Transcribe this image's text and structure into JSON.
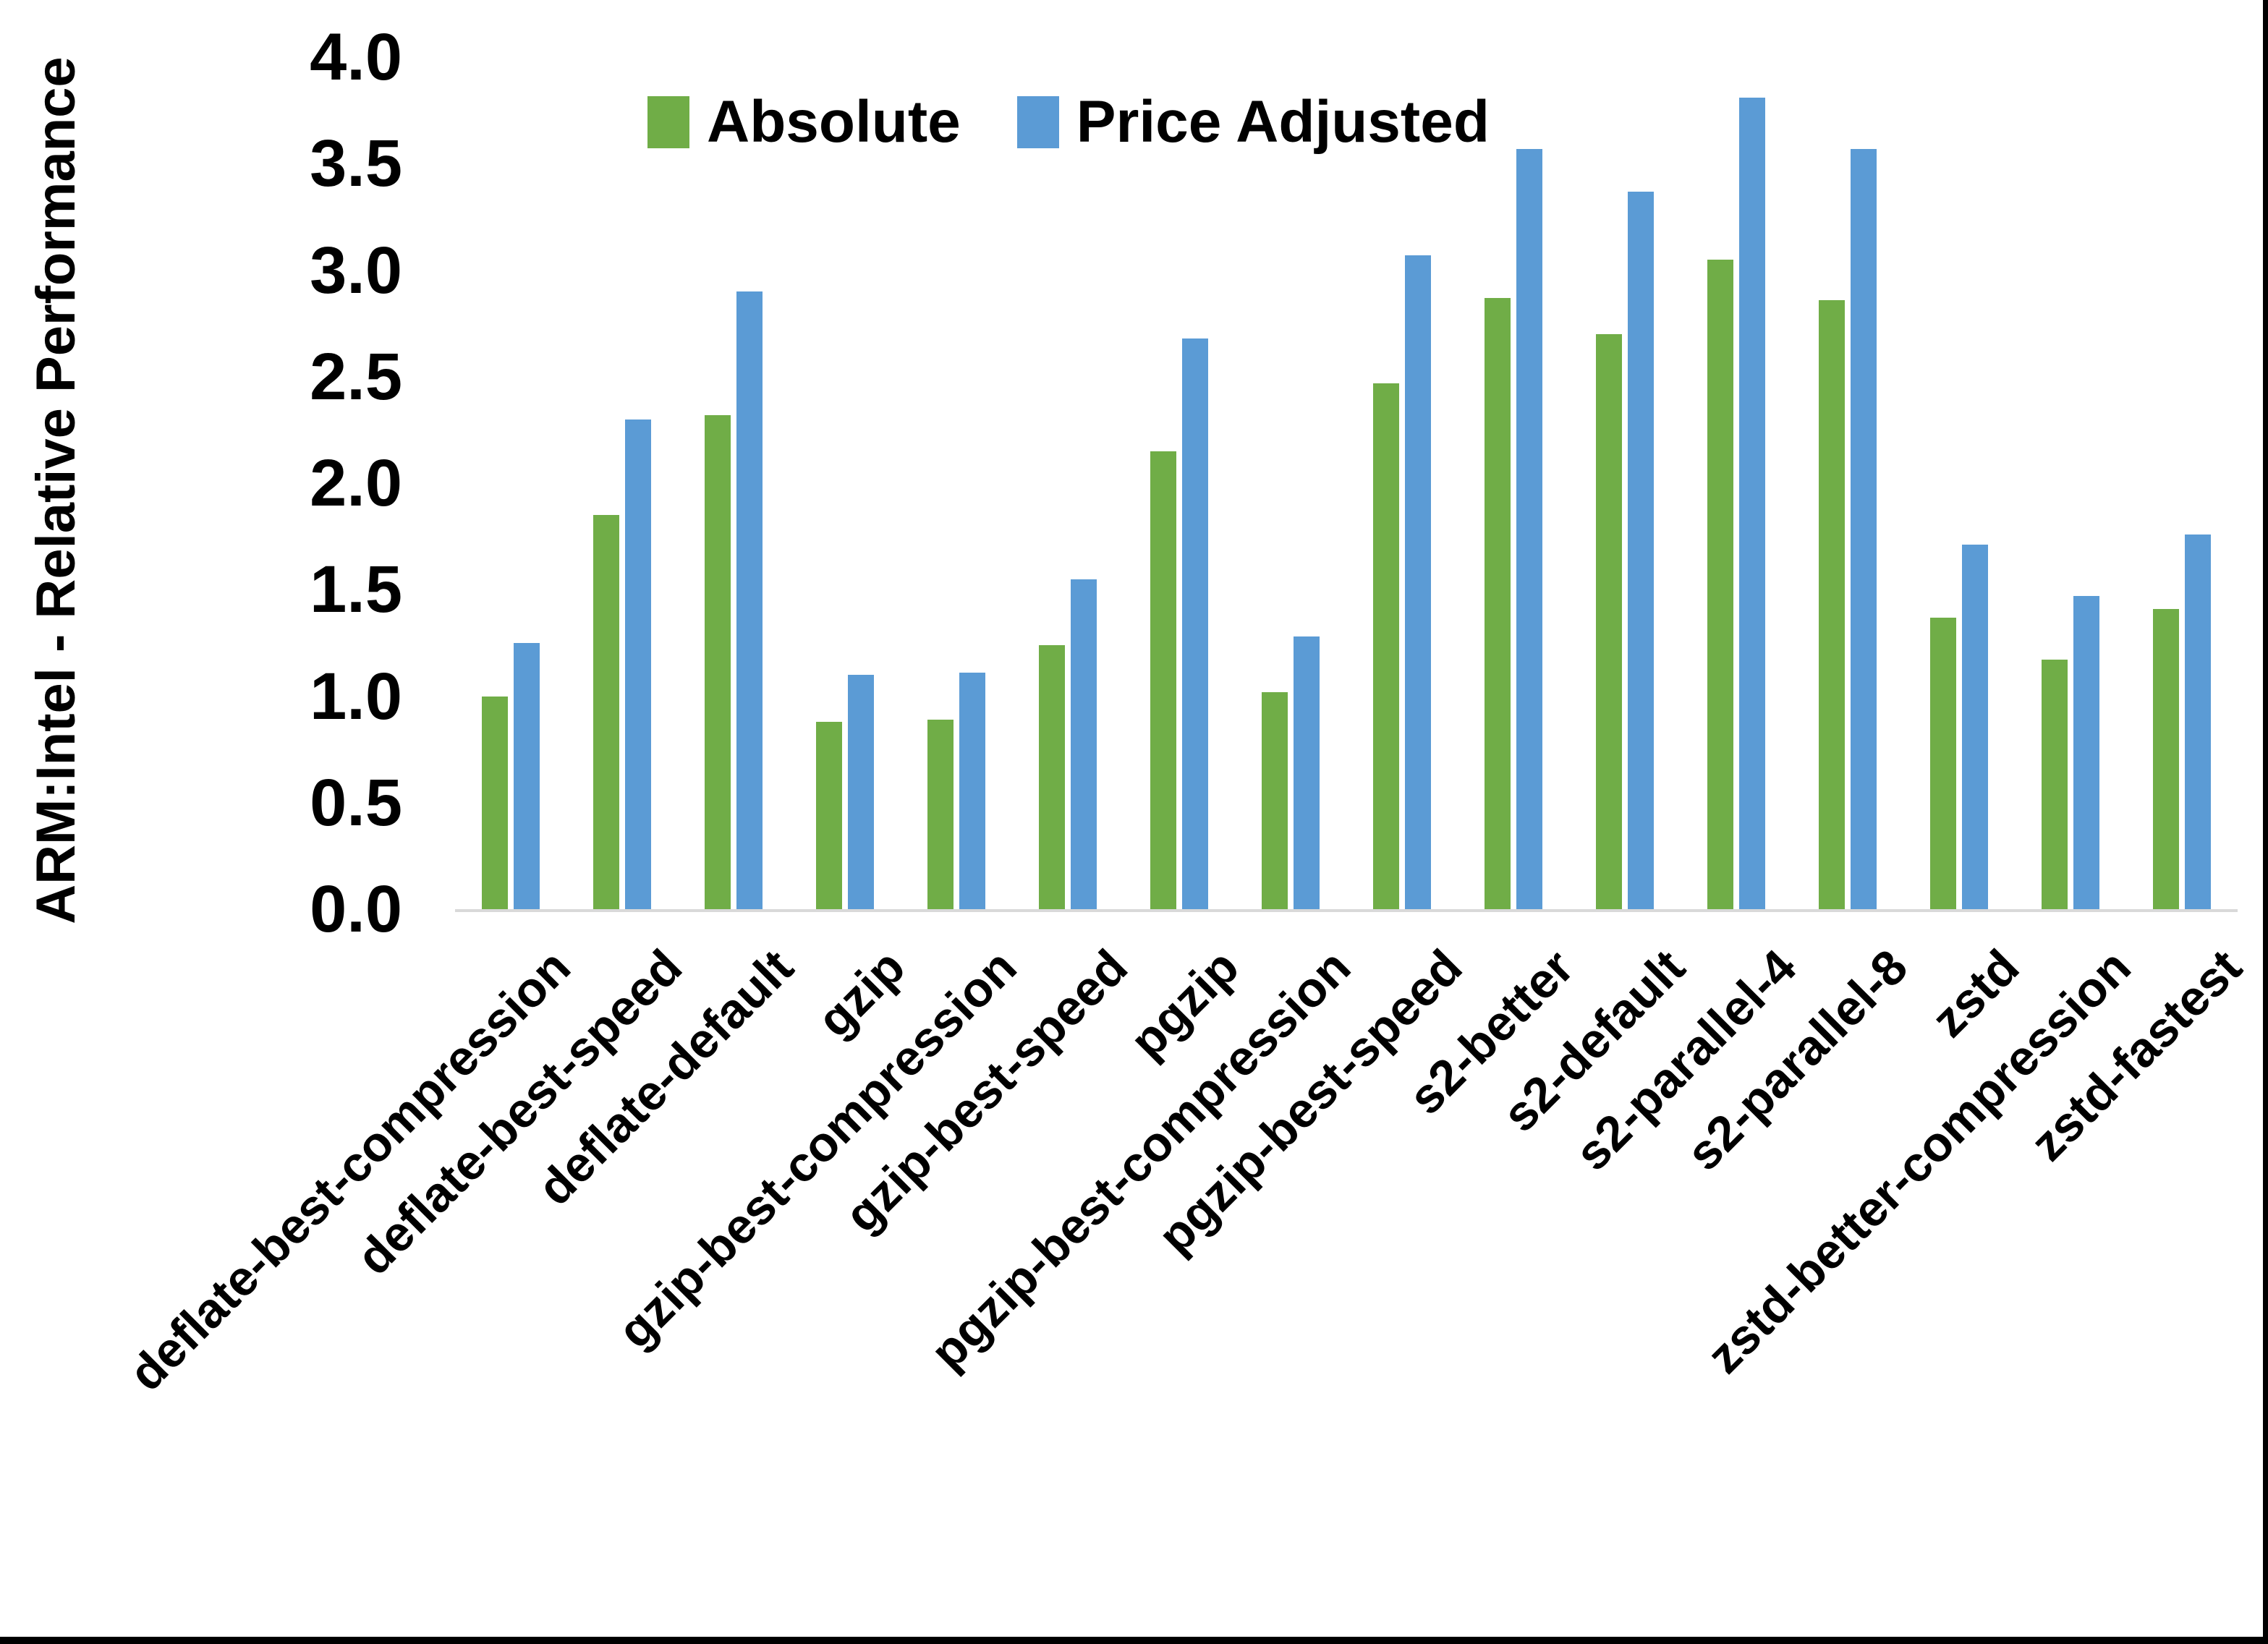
{
  "chart_data": {
    "type": "bar",
    "title": "",
    "ylabel": "ARM:Intel - Relative Performance",
    "xlabel": "",
    "ylim": [
      0.0,
      4.0
    ],
    "ytick_interval": 0.5,
    "ytick_labels": [
      "4.0",
      "3.5",
      "3.0",
      "2.5",
      "2.0",
      "1.5",
      "1.0",
      "0.5",
      "0.0"
    ],
    "grid": false,
    "legend_position": "top-center",
    "axis_line_color": "#d9d9d9",
    "text_color": "#000000",
    "categories": [
      "deflate-best-compression",
      "deflate-best-speed",
      "deflate-default",
      "gzip",
      "gzip-best-compression",
      "gzip-best-speed",
      "pgzip",
      "pgzip-best-compression",
      "pgzip-best-speed",
      "s2-better",
      "s2-default",
      "s2-parallel-4",
      "s2-parallel-8",
      "zstd",
      "zstd-better-compression",
      "zstd-fastest"
    ],
    "series": [
      {
        "name": "Absolute",
        "color": "#70AD47",
        "values": [
          1.0,
          1.85,
          2.32,
          0.88,
          0.89,
          1.24,
          2.15,
          1.02,
          2.47,
          2.87,
          2.7,
          3.05,
          2.86,
          1.37,
          1.17,
          1.41
        ]
      },
      {
        "name": "Price Adjusted",
        "color": "#5B9BD5",
        "values": [
          1.25,
          2.3,
          2.9,
          1.1,
          1.11,
          1.55,
          2.68,
          1.28,
          3.07,
          3.57,
          3.37,
          3.81,
          3.57,
          1.71,
          1.47,
          1.76
        ]
      }
    ]
  },
  "frame": {
    "edge_color": "#000000"
  }
}
